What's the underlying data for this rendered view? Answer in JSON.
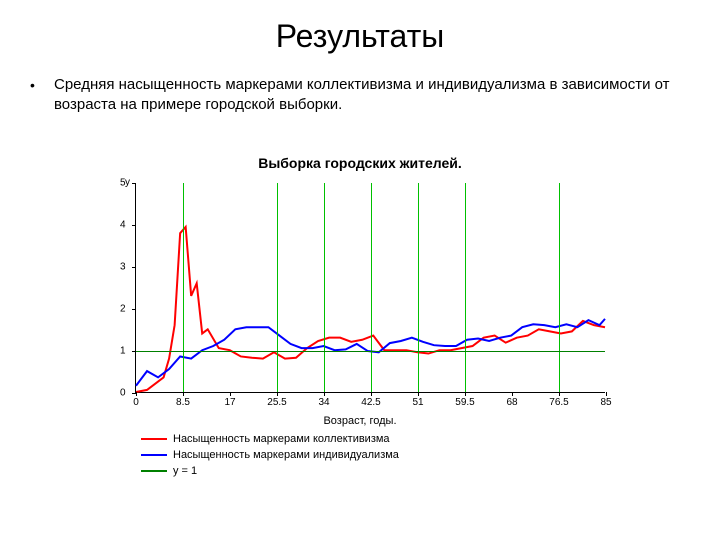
{
  "title": "Результаты",
  "bullet": "Средняя насыщенность маркерами коллективизма и индивидуализма в зависимости от возраста на примере городской выборки.",
  "chart": {
    "type": "line",
    "title": "Выборка городских жителей.",
    "title_fontsize": 14,
    "xaxis_label": "Возраст, годы.",
    "yaxis_label": "y",
    "background_color": "#ffffff",
    "axis_color": "#000000",
    "xlim": [
      0,
      85
    ],
    "ylim": [
      0,
      5
    ],
    "xticks": [
      0,
      8.5,
      17,
      25.5,
      34,
      42.5,
      51,
      59.5,
      68,
      76.5,
      85
    ],
    "xticklabels": [
      "0",
      "8.5",
      "17",
      "25.5",
      "34",
      "42.5",
      "51",
      "59.5",
      "68",
      "76.5",
      "85"
    ],
    "yticks": [
      0,
      1,
      2,
      3,
      4,
      5
    ],
    "grid_vertical_x": [
      8.5,
      25.5,
      34,
      42.5,
      51,
      59.5,
      76.5
    ],
    "grid_vertical_color": "#00c000",
    "ref_line_y": 1,
    "ref_line_color": "#008000",
    "series": [
      {
        "name": "Насыщенность маркерами коллективизма",
        "color": "#ff0000",
        "width": 2,
        "data": [
          [
            0,
            0.0
          ],
          [
            2,
            0.05
          ],
          [
            4,
            0.25
          ],
          [
            5,
            0.35
          ],
          [
            6,
            0.8
          ],
          [
            7,
            1.6
          ],
          [
            8,
            3.8
          ],
          [
            9,
            3.95
          ],
          [
            10,
            2.3
          ],
          [
            11,
            2.6
          ],
          [
            12,
            1.4
          ],
          [
            13,
            1.5
          ],
          [
            15,
            1.05
          ],
          [
            17,
            1.0
          ],
          [
            19,
            0.85
          ],
          [
            21,
            0.82
          ],
          [
            23,
            0.8
          ],
          [
            25,
            0.95
          ],
          [
            27,
            0.8
          ],
          [
            29,
            0.82
          ],
          [
            31,
            1.05
          ],
          [
            33,
            1.22
          ],
          [
            35,
            1.3
          ],
          [
            37,
            1.3
          ],
          [
            39,
            1.2
          ],
          [
            41,
            1.25
          ],
          [
            43,
            1.35
          ],
          [
            45,
            1.0
          ],
          [
            47,
            1.0
          ],
          [
            49,
            1.0
          ],
          [
            51,
            0.95
          ],
          [
            53,
            0.92
          ],
          [
            55,
            1.0
          ],
          [
            57,
            1.0
          ],
          [
            59,
            1.05
          ],
          [
            61,
            1.1
          ],
          [
            63,
            1.3
          ],
          [
            65,
            1.35
          ],
          [
            67,
            1.18
          ],
          [
            69,
            1.3
          ],
          [
            71,
            1.35
          ],
          [
            73,
            1.5
          ],
          [
            75,
            1.45
          ],
          [
            77,
            1.4
          ],
          [
            79,
            1.45
          ],
          [
            81,
            1.7
          ],
          [
            83,
            1.6
          ],
          [
            85,
            1.55
          ]
        ]
      },
      {
        "name": "Насыщенность маркерами индивидуализма",
        "color": "#0000ff",
        "width": 2,
        "data": [
          [
            0,
            0.15
          ],
          [
            2,
            0.5
          ],
          [
            4,
            0.35
          ],
          [
            6,
            0.55
          ],
          [
            8,
            0.85
          ],
          [
            10,
            0.8
          ],
          [
            12,
            1.0
          ],
          [
            14,
            1.1
          ],
          [
            16,
            1.25
          ],
          [
            18,
            1.5
          ],
          [
            20,
            1.55
          ],
          [
            22,
            1.55
          ],
          [
            24,
            1.55
          ],
          [
            26,
            1.35
          ],
          [
            28,
            1.15
          ],
          [
            30,
            1.05
          ],
          [
            32,
            1.05
          ],
          [
            34,
            1.1
          ],
          [
            36,
            1.0
          ],
          [
            38,
            1.02
          ],
          [
            40,
            1.15
          ],
          [
            42,
            0.98
          ],
          [
            44,
            0.95
          ],
          [
            46,
            1.17
          ],
          [
            48,
            1.22
          ],
          [
            50,
            1.3
          ],
          [
            52,
            1.2
          ],
          [
            54,
            1.12
          ],
          [
            56,
            1.1
          ],
          [
            58,
            1.1
          ],
          [
            60,
            1.25
          ],
          [
            62,
            1.28
          ],
          [
            64,
            1.22
          ],
          [
            66,
            1.3
          ],
          [
            68,
            1.35
          ],
          [
            70,
            1.55
          ],
          [
            72,
            1.62
          ],
          [
            74,
            1.6
          ],
          [
            76,
            1.55
          ],
          [
            78,
            1.62
          ],
          [
            80,
            1.55
          ],
          [
            82,
            1.72
          ],
          [
            84,
            1.6
          ],
          [
            85,
            1.75
          ]
        ]
      }
    ],
    "legend": [
      {
        "label": "Насыщенность маркерами коллективизма",
        "color": "#ff0000"
      },
      {
        "label": "Насыщенность маркерами индивидуализма",
        "color": "#0000ff"
      },
      {
        "label": "y = 1",
        "color": "#008000"
      }
    ]
  }
}
